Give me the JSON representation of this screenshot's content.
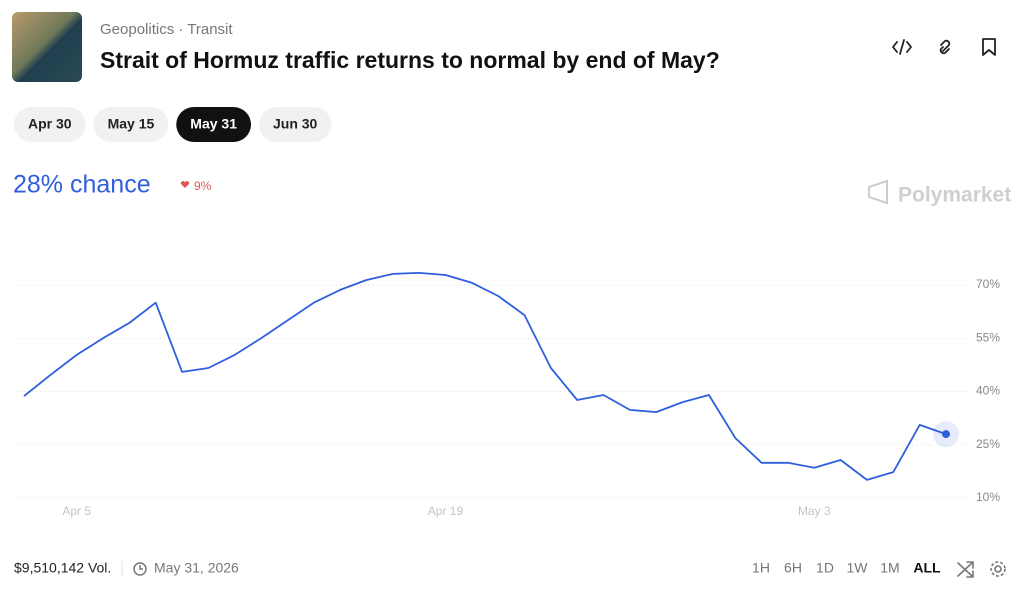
{
  "header": {
    "breadcrumb": "Geopolitics · Transit",
    "title": "Strait of Hormuz traffic returns to normal by end of May?"
  },
  "tabs": [
    "Apr 30",
    "May 15",
    "May 31",
    "Jun 30"
  ],
  "active_tab": "May 31",
  "chance": "28% chance",
  "change": "9%",
  "brand": "Polymarket",
  "footer": {
    "volume": "$9,510,142 Vol.",
    "date": "May 31, 2026",
    "ranges": [
      "1H",
      "6H",
      "1D",
      "1W",
      "1M",
      "ALL"
    ],
    "active_range": "ALL"
  },
  "chart_data": {
    "type": "line",
    "x": [
      "Apr 3",
      "Apr 4",
      "Apr 5",
      "Apr 6",
      "Apr 7",
      "Apr 8",
      "Apr 9",
      "Apr 10",
      "Apr 11",
      "Apr 12",
      "Apr 13",
      "Apr 14",
      "Apr 15",
      "Apr 16",
      "Apr 17",
      "Apr 18",
      "Apr 19",
      "Apr 20",
      "Apr 21",
      "Apr 22",
      "Apr 23",
      "Apr 24",
      "Apr 25",
      "Apr 26",
      "Apr 27",
      "Apr 28",
      "Apr 29",
      "Apr 30",
      "May 1",
      "May 2",
      "May 3",
      "May 4",
      "May 5",
      "May 6",
      "May 7",
      "May 8"
    ],
    "values": [
      38.7,
      44.6,
      50.3,
      55,
      59.3,
      65,
      45.5,
      46.6,
      50.3,
      55,
      60,
      65,
      68.6,
      71.4,
      73.1,
      73.4,
      72.8,
      70.6,
      66.9,
      61.5,
      46.6,
      37.6,
      39,
      34.8,
      34.2,
      37,
      39,
      26.9,
      19.9,
      19.9,
      18.5,
      20.7,
      15.1,
      17.3,
      30.6,
      28
    ],
    "color": "#2f5fdc",
    "xlim": [
      "Apr 3",
      "May 8"
    ],
    "xticks": [
      "Apr 5",
      "Apr 19",
      "May 3"
    ],
    "ylim": [
      4,
      79
    ],
    "yticks": [
      {
        "value": 10,
        "label": "10%"
      },
      {
        "value": 25,
        "label": "25%"
      },
      {
        "value": 40,
        "label": "40%"
      },
      {
        "value": 55,
        "label": "55%"
      },
      {
        "value": 70,
        "label": "70%"
      }
    ],
    "grid": true
  }
}
